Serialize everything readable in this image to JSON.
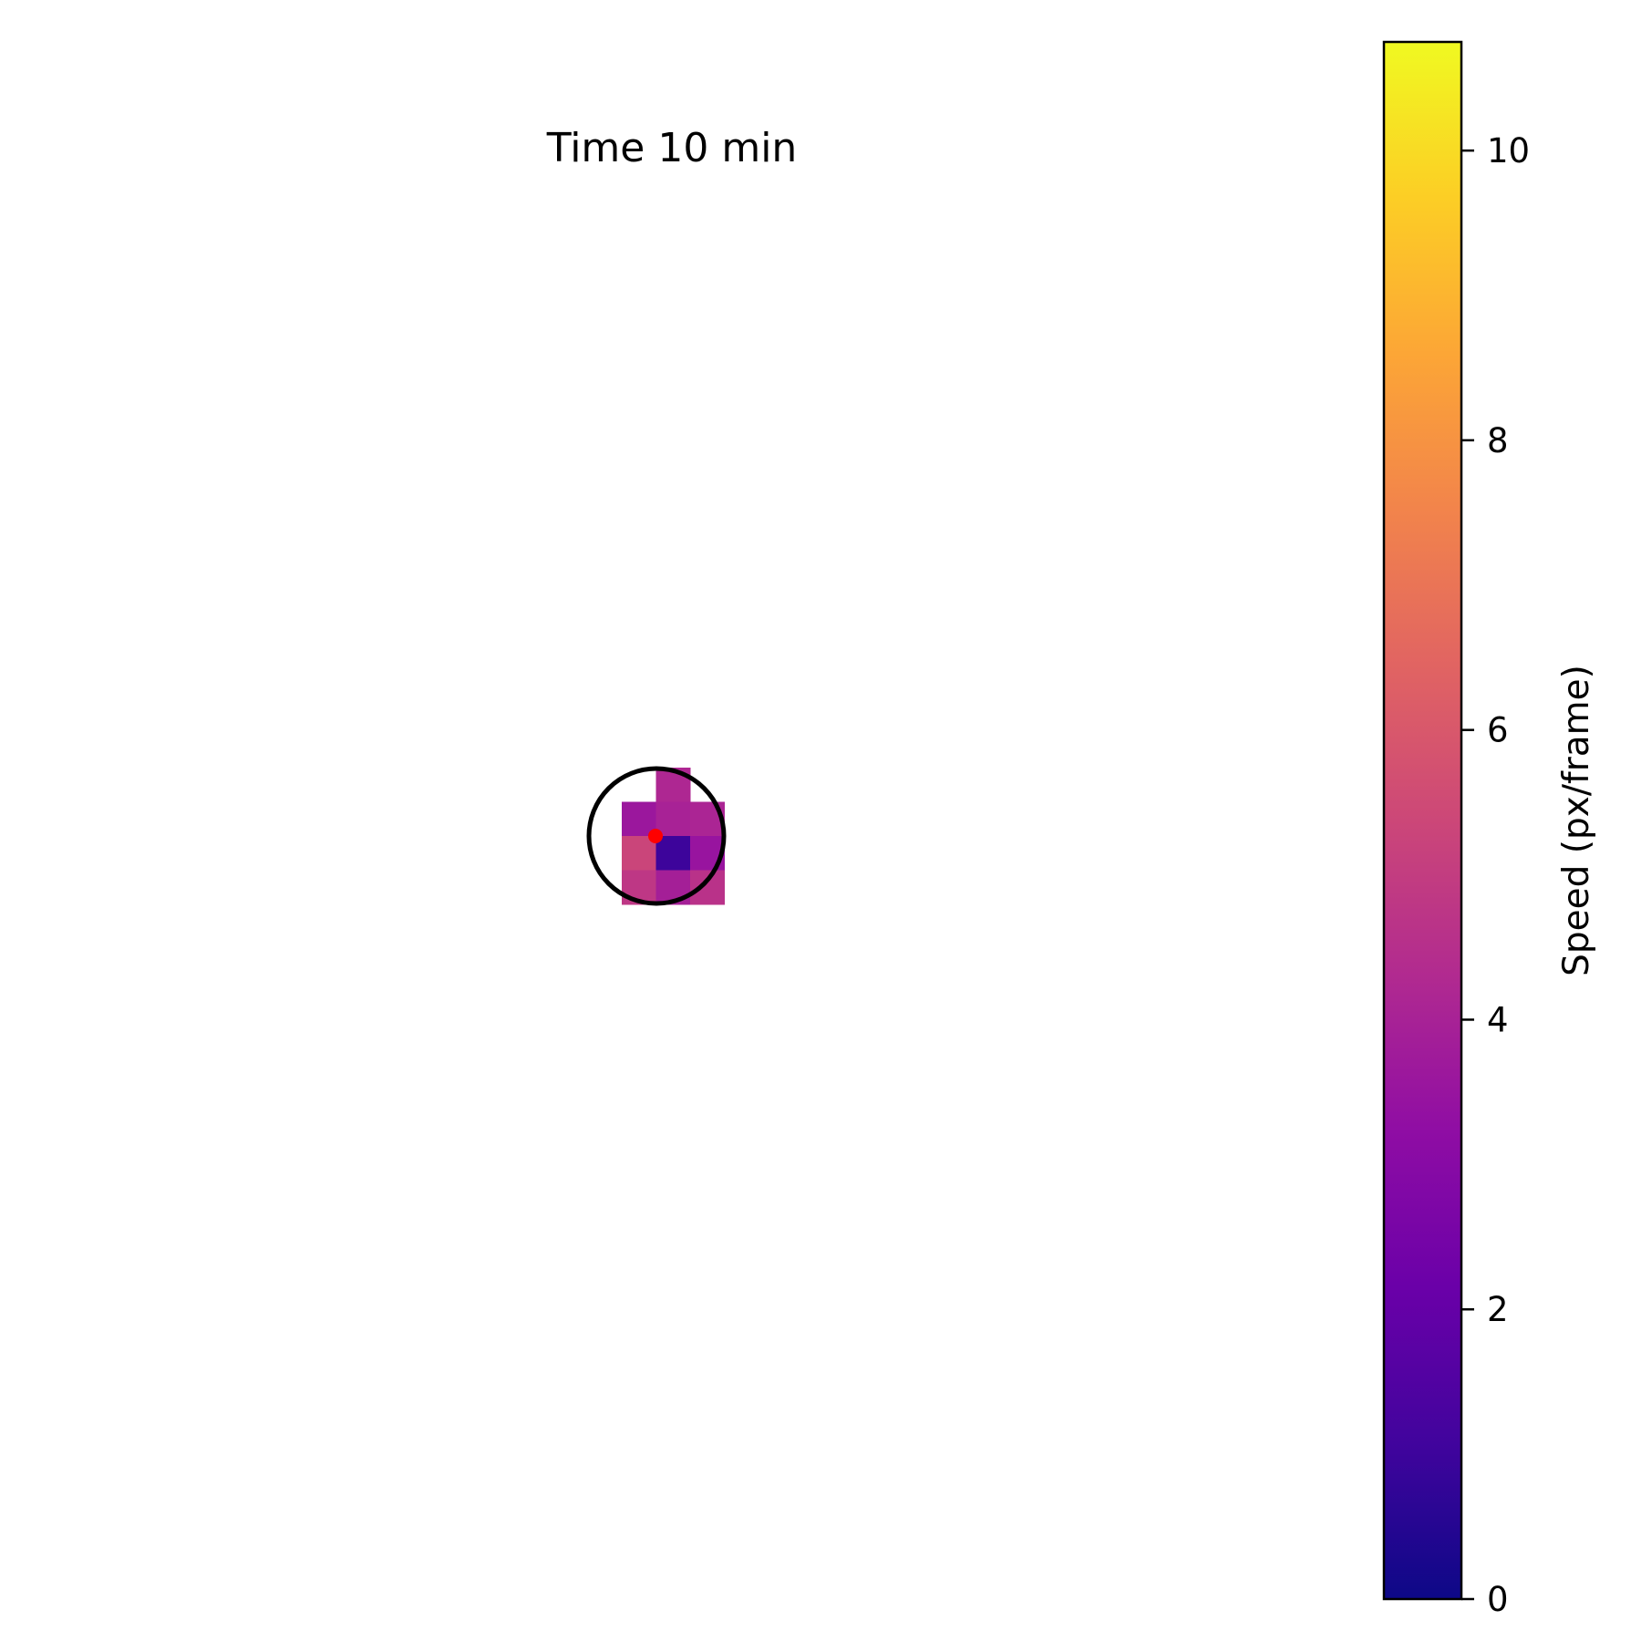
{
  "chart_data": {
    "type": "heatmap",
    "title": "Time 10 min",
    "colormap": "plasma",
    "colorbar": {
      "label": "Speed (px/frame)",
      "range": [
        0,
        10.75
      ],
      "ticks": [
        0,
        2,
        4,
        6,
        8,
        10
      ],
      "tick_labels": [
        "0",
        "2",
        "4",
        "6",
        "8",
        "10"
      ]
    },
    "axes_visible": false,
    "cells": [
      {
        "col": 1,
        "row": 0,
        "value": 4.2
      },
      {
        "col": 0,
        "row": 1,
        "value": 3.6
      },
      {
        "col": 1,
        "row": 1,
        "value": 4.0
      },
      {
        "col": 2,
        "row": 1,
        "value": 4.1
      },
      {
        "col": 0,
        "row": 2,
        "value": 5.3
      },
      {
        "col": 1,
        "row": 2,
        "value": 1.0
      },
      {
        "col": 2,
        "row": 2,
        "value": 3.5
      },
      {
        "col": 0,
        "row": 3,
        "value": 4.8
      },
      {
        "col": 1,
        "row": 3,
        "value": 3.9
      },
      {
        "col": 2,
        "row": 3,
        "value": 4.6
      }
    ],
    "annotations": {
      "circle": {
        "color": "#000000"
      },
      "center_marker": {
        "color": "#ff0000"
      }
    }
  }
}
